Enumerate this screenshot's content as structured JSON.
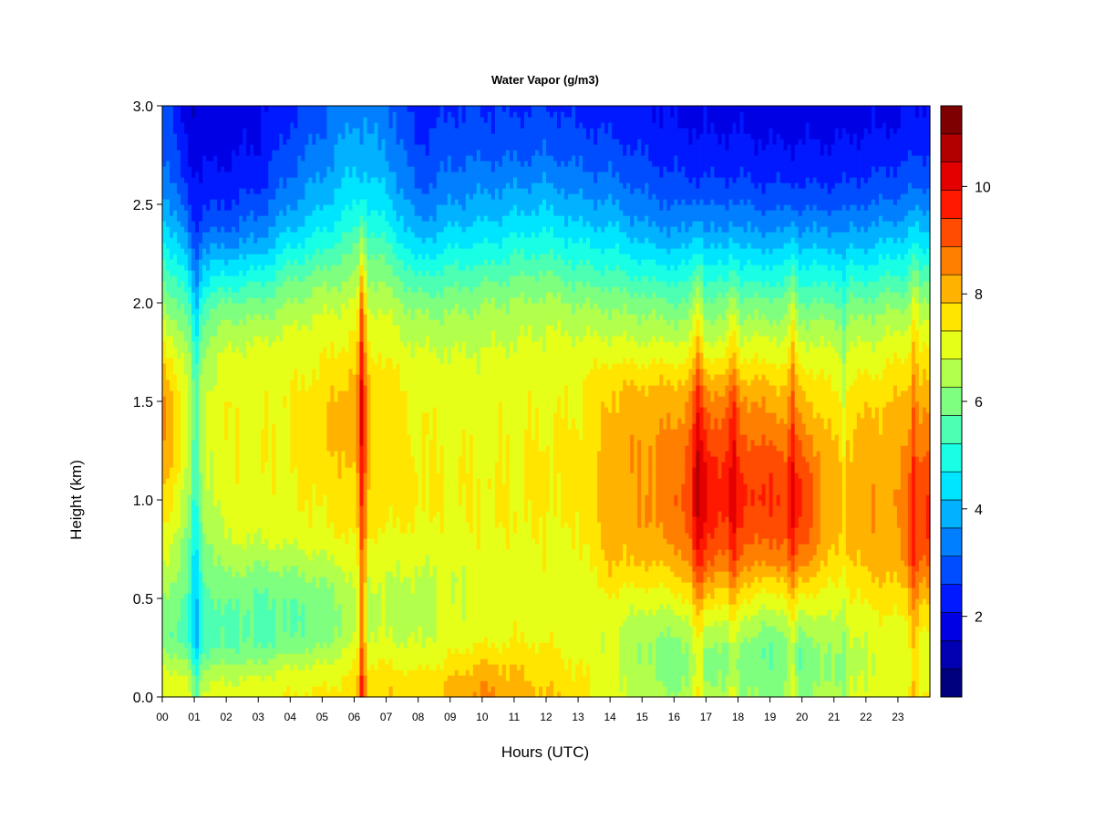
{
  "chart_data": {
    "type": "heatmap",
    "title": "Water Vapor (g/m3)",
    "xlabel": "Hours (UTC)",
    "ylabel": "Height (km)",
    "xlim": [
      0,
      24
    ],
    "ylim": [
      0.0,
      3.0
    ],
    "x_ticks": [
      "00",
      "01",
      "02",
      "03",
      "04",
      "05",
      "06",
      "07",
      "08",
      "09",
      "10",
      "11",
      "12",
      "13",
      "14",
      "15",
      "16",
      "17",
      "18",
      "19",
      "20",
      "21",
      "22",
      "23"
    ],
    "y_ticks": [
      "0.0",
      "0.5",
      "1.0",
      "1.5",
      "2.0",
      "2.5",
      "3.0"
    ],
    "colorbar": {
      "min": 0.5,
      "max": 11.5,
      "ticks": [
        "2",
        "4",
        "6",
        "8",
        "10"
      ],
      "levels": [
        "#00007f",
        "#0000b2",
        "#0000e5",
        "#0019ff",
        "#004cff",
        "#007fff",
        "#00b2ff",
        "#00e5ff",
        "#19ffe5",
        "#4cffb2",
        "#7fff7f",
        "#b2ff4c",
        "#e5ff19",
        "#ffe500",
        "#ffb200",
        "#ff7f00",
        "#ff4c00",
        "#ff1900",
        "#e50000",
        "#b20000",
        "#7f0000"
      ]
    },
    "heights": [
      0.0,
      0.05,
      0.1,
      0.15,
      0.2,
      0.25,
      0.3,
      0.4,
      0.5,
      0.6,
      0.7,
      0.8,
      0.9,
      1.0,
      1.1,
      1.2,
      1.3,
      1.4,
      1.5,
      1.6,
      1.7,
      1.8,
      1.9,
      2.0,
      2.1,
      2.2,
      2.3,
      2.4,
      2.5,
      2.6,
      2.7,
      2.8,
      2.9,
      3.0
    ],
    "hours": [
      0,
      1,
      2,
      3,
      4,
      5,
      6,
      7,
      8,
      9,
      10,
      11,
      12,
      13,
      14,
      15,
      16,
      17,
      18,
      19,
      20,
      21,
      22,
      23,
      24
    ],
    "profiles": [
      [
        7.3,
        7.2,
        7.1,
        6.9,
        6.6,
        6.3,
        6.1,
        6.2,
        6.4,
        6.7,
        7.0,
        7.2,
        7.5,
        7.8,
        8.0,
        8.3,
        8.4,
        8.4,
        8.4,
        8.2,
        7.8,
        7.3,
        6.8,
        6.3,
        5.9,
        5.4,
        4.9,
        4.4,
        4.0,
        3.6,
        3.3,
        3.1,
        3.0,
        2.9
      ],
      [
        7.0,
        6.8,
        6.6,
        6.2,
        5.8,
        5.4,
        5.2,
        5.2,
        5.3,
        5.5,
        5.6,
        5.8,
        6.0,
        6.2,
        6.4,
        6.5,
        6.6,
        6.6,
        6.6,
        6.5,
        6.3,
        6.0,
        5.6,
        5.2,
        4.6,
        4.0,
        3.4,
        2.9,
        2.5,
        2.2,
        2.0,
        1.8,
        1.7,
        1.6
      ],
      [
        7.1,
        6.9,
        6.7,
        6.4,
        6.0,
        5.8,
        5.7,
        5.7,
        5.9,
        6.2,
        6.5,
        6.8,
        7.0,
        7.1,
        7.2,
        7.2,
        7.2,
        7.2,
        7.2,
        7.1,
        7.0,
        6.7,
        6.3,
        5.8,
        5.0,
        4.3,
        3.6,
        3.0,
        2.6,
        2.3,
        2.1,
        1.9,
        1.8,
        1.7
      ],
      [
        7.2,
        7.0,
        6.8,
        6.5,
        6.1,
        5.8,
        5.6,
        5.6,
        5.7,
        6.0,
        6.4,
        6.8,
        7.0,
        7.1,
        7.2,
        7.2,
        7.2,
        7.2,
        7.2,
        7.1,
        7.0,
        6.8,
        6.4,
        5.8,
        5.2,
        4.5,
        3.8,
        3.3,
        2.9,
        2.5,
        2.3,
        2.1,
        2.0,
        1.9
      ],
      [
        7.3,
        7.2,
        7.0,
        6.8,
        6.4,
        6.0,
        5.8,
        5.7,
        5.8,
        6.1,
        6.5,
        6.9,
        7.1,
        7.2,
        7.2,
        7.3,
        7.3,
        7.3,
        7.3,
        7.2,
        7.1,
        7.0,
        6.7,
        6.3,
        5.8,
        5.2,
        4.6,
        4.0,
        3.6,
        3.3,
        3.0,
        2.8,
        2.6,
        2.5
      ],
      [
        7.4,
        7.3,
        7.1,
        6.9,
        6.6,
        6.3,
        6.0,
        5.9,
        6.0,
        6.3,
        6.7,
        7.1,
        7.3,
        7.4,
        7.5,
        7.6,
        7.7,
        7.7,
        7.7,
        7.5,
        7.3,
        7.1,
        6.9,
        6.6,
        6.1,
        5.6,
        5.0,
        4.5,
        4.1,
        3.8,
        3.5,
        3.3,
        3.1,
        3.0
      ],
      [
        7.6,
        7.5,
        7.4,
        7.3,
        7.1,
        6.9,
        6.7,
        6.6,
        6.6,
        6.8,
        7.0,
        7.3,
        7.5,
        7.7,
        7.8,
        8.0,
        8.1,
        8.2,
        8.2,
        8.0,
        7.7,
        7.4,
        7.1,
        6.8,
        6.4,
        6.0,
        5.6,
        5.1,
        4.7,
        4.4,
        4.1,
        3.9,
        3.7,
        3.6
      ],
      [
        7.8,
        7.7,
        7.6,
        7.4,
        7.2,
        7.0,
        6.8,
        6.7,
        6.7,
        6.8,
        7.0,
        7.2,
        7.4,
        7.5,
        7.6,
        7.6,
        7.6,
        7.6,
        7.6,
        7.5,
        7.3,
        7.1,
        6.9,
        6.6,
        6.2,
        5.8,
        5.3,
        4.8,
        4.4,
        4.1,
        3.8,
        3.6,
        3.4,
        3.3
      ],
      [
        7.6,
        7.5,
        7.4,
        7.2,
        7.0,
        6.8,
        6.7,
        6.6,
        6.6,
        6.7,
        6.9,
        7.1,
        7.3,
        7.4,
        7.4,
        7.3,
        7.3,
        7.3,
        7.2,
        7.1,
        6.9,
        6.7,
        6.4,
        6.0,
        5.4,
        4.8,
        4.2,
        3.7,
        3.3,
        3.0,
        2.8,
        2.6,
        2.4,
        2.3
      ],
      [
        8.0,
        7.9,
        7.8,
        7.5,
        7.3,
        7.2,
        7.0,
        6.9,
        6.8,
        6.8,
        6.9,
        7.1,
        7.2,
        7.3,
        7.3,
        7.3,
        7.2,
        7.2,
        7.1,
        7.0,
        6.9,
        6.7,
        6.4,
        6.1,
        5.6,
        5.1,
        4.6,
        4.1,
        3.7,
        3.4,
        3.1,
        2.9,
        2.7,
        2.6
      ],
      [
        8.5,
        8.4,
        8.2,
        8.0,
        7.7,
        7.4,
        7.1,
        6.9,
        6.9,
        7.0,
        7.1,
        7.2,
        7.3,
        7.3,
        7.3,
        7.2,
        7.2,
        7.1,
        7.1,
        7.0,
        6.9,
        6.7,
        6.5,
        6.2,
        5.7,
        5.2,
        4.7,
        4.2,
        3.8,
        3.5,
        3.2,
        2.9,
        2.7,
        2.6
      ],
      [
        8.2,
        8.1,
        7.9,
        7.8,
        7.6,
        7.4,
        7.3,
        7.1,
        7.0,
        7.0,
        7.1,
        7.2,
        7.3,
        7.3,
        7.3,
        7.3,
        7.3,
        7.2,
        7.2,
        7.1,
        7.0,
        6.8,
        6.6,
        6.3,
        5.9,
        5.4,
        4.9,
        4.4,
        4.0,
        3.6,
        3.2,
        2.9,
        2.7,
        2.5
      ],
      [
        7.9,
        7.8,
        7.7,
        7.6,
        7.5,
        7.4,
        7.2,
        7.1,
        7.1,
        7.1,
        7.2,
        7.3,
        7.3,
        7.4,
        7.4,
        7.4,
        7.3,
        7.3,
        7.2,
        7.1,
        7.0,
        6.9,
        6.7,
        6.4,
        6.0,
        5.5,
        5.0,
        4.5,
        4.1,
        3.7,
        3.3,
        3.0,
        2.8,
        2.6
      ],
      [
        7.6,
        7.5,
        7.4,
        7.3,
        7.2,
        7.1,
        7.0,
        6.9,
        6.9,
        7.0,
        7.1,
        7.2,
        7.3,
        7.4,
        7.4,
        7.4,
        7.4,
        7.3,
        7.3,
        7.2,
        7.1,
        6.9,
        6.6,
        6.2,
        5.7,
        5.2,
        4.7,
        4.2,
        3.8,
        3.4,
        3.1,
        2.8,
        2.6,
        2.4
      ],
      [
        7.0,
        6.9,
        6.9,
        6.9,
        6.9,
        6.9,
        6.9,
        7.0,
        7.2,
        7.6,
        7.9,
        8.0,
        8.1,
        8.1,
        8.1,
        8.1,
        8.0,
        8.0,
        7.9,
        7.7,
        7.3,
        6.9,
        6.5,
        6.1,
        5.6,
        5.1,
        4.6,
        4.1,
        3.7,
        3.3,
        3.0,
        2.7,
        2.5,
        2.3
      ],
      [
        6.6,
        6.5,
        6.4,
        6.4,
        6.3,
        6.3,
        6.3,
        6.6,
        7.0,
        7.5,
        7.9,
        8.1,
        8.3,
        8.3,
        8.3,
        8.3,
        8.3,
        8.2,
        8.1,
        7.8,
        7.3,
        6.8,
        6.4,
        6.0,
        5.4,
        4.8,
        4.2,
        3.7,
        3.3,
        3.0,
        2.7,
        2.5,
        2.3,
        2.2
      ],
      [
        6.3,
        6.2,
        6.1,
        6.0,
        6.0,
        6.1,
        6.2,
        6.6,
        7.1,
        7.6,
        8.1,
        8.4,
        8.6,
        8.7,
        8.7,
        8.6,
        8.5,
        8.3,
        8.1,
        7.8,
        7.3,
        6.8,
        6.3,
        5.8,
        5.2,
        4.6,
        4.0,
        3.5,
        3.1,
        2.8,
        2.5,
        2.3,
        2.1,
        2.0
      ],
      [
        6.4,
        6.3,
        6.2,
        6.1,
        6.1,
        6.2,
        6.4,
        6.9,
        7.6,
        8.3,
        8.9,
        9.3,
        9.6,
        9.8,
        9.8,
        9.6,
        9.3,
        9.0,
        8.6,
        8.1,
        7.4,
        6.8,
        6.3,
        5.8,
        5.2,
        4.6,
        4.0,
        3.5,
        3.1,
        2.7,
        2.4,
        2.2,
        2.0,
        1.9
      ],
      [
        6.3,
        6.2,
        6.1,
        6.0,
        6.0,
        6.1,
        6.3,
        6.8,
        7.4,
        8.0,
        8.6,
        9.0,
        9.3,
        9.5,
        9.4,
        9.2,
        9.0,
        8.8,
        8.5,
        8.0,
        7.4,
        6.9,
        6.4,
        5.9,
        5.2,
        4.6,
        4.0,
        3.5,
        3.1,
        2.7,
        2.4,
        2.2,
        2.0,
        1.9
      ],
      [
        6.2,
        6.1,
        6.0,
        5.9,
        5.8,
        5.8,
        6.0,
        6.5,
        7.1,
        7.8,
        8.5,
        8.9,
        9.2,
        9.4,
        9.3,
        9.1,
        8.8,
        8.5,
        8.2,
        7.8,
        7.3,
        6.9,
        6.4,
        5.9,
        5.2,
        4.6,
        4.0,
        3.5,
        3.0,
        2.6,
        2.3,
        2.1,
        1.9,
        1.8
      ],
      [
        6.2,
        6.1,
        6.0,
        5.9,
        5.9,
        5.9,
        6.1,
        6.6,
        7.2,
        7.9,
        8.6,
        9.0,
        9.3,
        9.4,
        9.3,
        9.0,
        8.7,
        8.3,
        8.0,
        7.7,
        7.2,
        6.8,
        6.3,
        5.8,
        5.2,
        4.6,
        4.0,
        3.5,
        3.0,
        2.6,
        2.3,
        2.1,
        1.9,
        1.8
      ],
      [
        6.5,
        6.4,
        6.3,
        6.3,
        6.3,
        6.4,
        6.5,
        6.8,
        7.1,
        7.4,
        7.7,
        7.9,
        8.0,
        8.0,
        8.0,
        7.9,
        7.8,
        7.6,
        7.4,
        7.2,
        7.0,
        6.7,
        6.3,
        5.8,
        5.2,
        4.6,
        4.0,
        3.5,
        3.0,
        2.6,
        2.3,
        2.1,
        1.9,
        1.8
      ],
      [
        7.0,
        6.9,
        6.9,
        6.8,
        6.8,
        6.8,
        6.9,
        7.1,
        7.4,
        7.7,
        8.0,
        8.1,
        8.2,
        8.2,
        8.2,
        8.1,
        8.0,
        7.9,
        7.7,
        7.4,
        7.1,
        6.8,
        6.4,
        5.9,
        5.3,
        4.7,
        4.1,
        3.6,
        3.1,
        2.7,
        2.4,
        2.2,
        2.0,
        1.9
      ],
      [
        7.2,
        7.1,
        7.0,
        7.0,
        7.0,
        7.0,
        7.1,
        7.3,
        7.6,
        7.9,
        8.2,
        8.3,
        8.4,
        8.4,
        8.3,
        8.2,
        8.1,
        8.0,
        7.9,
        7.6,
        7.3,
        7.0,
        6.6,
        6.1,
        5.5,
        4.9,
        4.3,
        3.8,
        3.3,
        2.9,
        2.6,
        2.3,
        2.1,
        2.0
      ],
      [
        7.3,
        7.2,
        7.1,
        7.0,
        7.0,
        7.1,
        7.2,
        7.5,
        8.0,
        8.6,
        9.2,
        9.5,
        9.6,
        9.6,
        9.4,
        9.1,
        8.8,
        8.5,
        8.2,
        7.9,
        7.6,
        7.2,
        6.8,
        6.3,
        5.7,
        5.1,
        4.5,
        4.0,
        3.5,
        3.1,
        2.8,
        2.5,
        2.3,
        2.2
      ]
    ],
    "spikes": [
      {
        "hour": 1.05,
        "width": 0.1,
        "delta": -1.2
      },
      {
        "hour": 6.25,
        "width": 0.08,
        "delta": 2.0
      },
      {
        "hour": 16.75,
        "width": 0.12,
        "delta": 1.1
      },
      {
        "hour": 17.85,
        "width": 0.1,
        "delta": 0.8
      },
      {
        "hour": 19.7,
        "width": 0.08,
        "delta": 0.9
      },
      {
        "hour": 21.3,
        "width": 0.06,
        "delta": -0.6
      },
      {
        "hour": 23.5,
        "width": 0.08,
        "delta": 0.8
      }
    ]
  }
}
